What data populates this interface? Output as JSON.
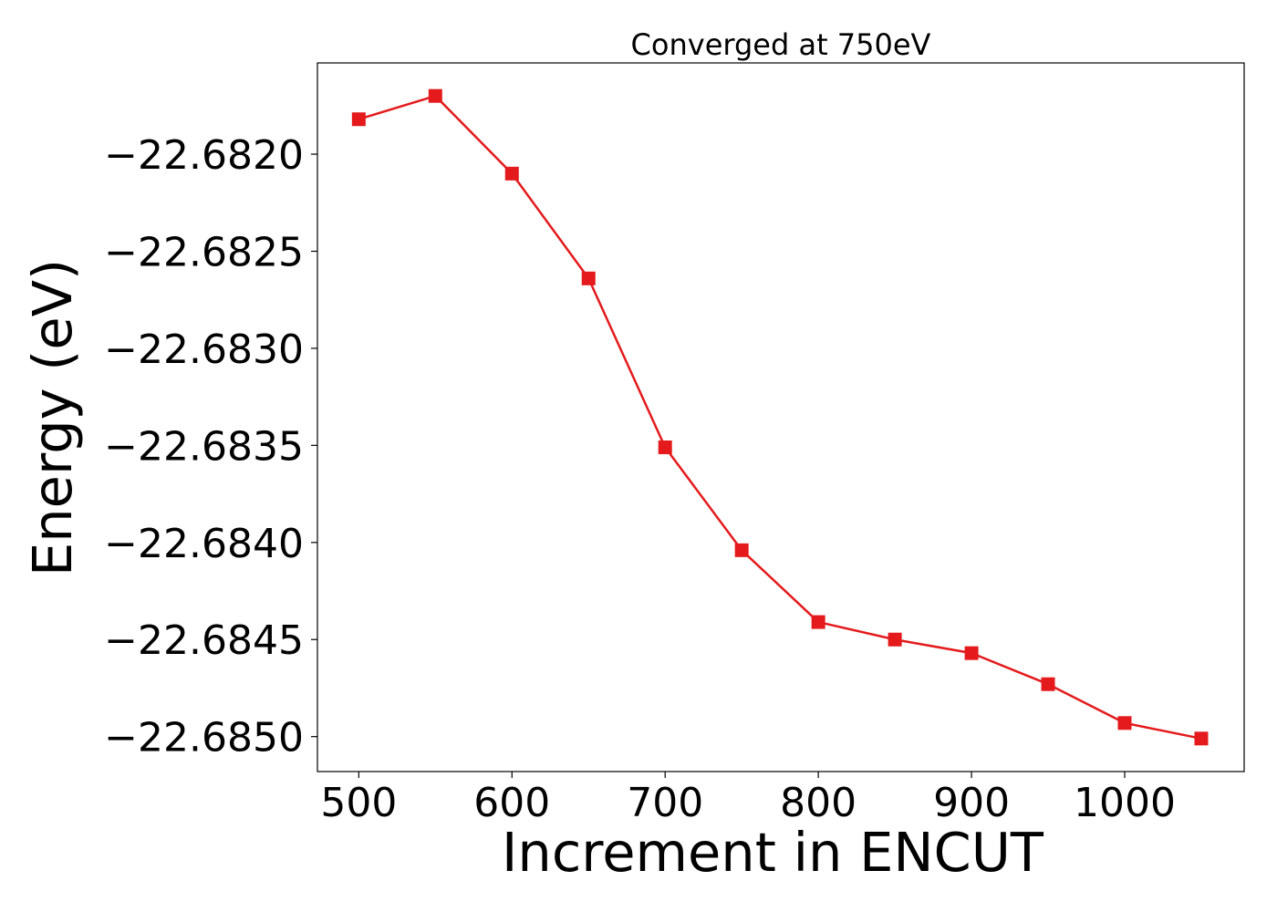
{
  "chart_data": {
    "type": "line",
    "title": "Converged at 750eV",
    "xlabel": "Increment in ENCUT",
    "ylabel": "Energy (eV)",
    "x": [
      500,
      550,
      600,
      650,
      700,
      750,
      800,
      850,
      900,
      950,
      1000,
      1050
    ],
    "series": [
      {
        "values": [
          -22.68182,
          -22.6817,
          -22.6821,
          -22.68264,
          -22.68351,
          -22.68404,
          -22.68441,
          -22.6845,
          -22.68457,
          -22.68473,
          -22.68493,
          -22.68501
        ],
        "color": "#e41a1c",
        "marker": "square"
      }
    ],
    "xlim": [
      473,
      1078
    ],
    "ylim": [
      -22.68518,
      -22.68153
    ],
    "xticks": [
      500,
      600,
      700,
      800,
      900,
      1000
    ],
    "xtick_labels": [
      "500",
      "600",
      "700",
      "800",
      "900",
      "1000"
    ],
    "yticks": [
      -22.682,
      -22.6825,
      -22.683,
      -22.6835,
      -22.684,
      -22.6845,
      -22.685
    ],
    "ytick_labels": [
      "−22.6820",
      "−22.6825",
      "−22.6830",
      "−22.6835",
      "−22.6840",
      "−22.6845",
      "−22.6850"
    ],
    "grid": false,
    "legend": "none"
  }
}
